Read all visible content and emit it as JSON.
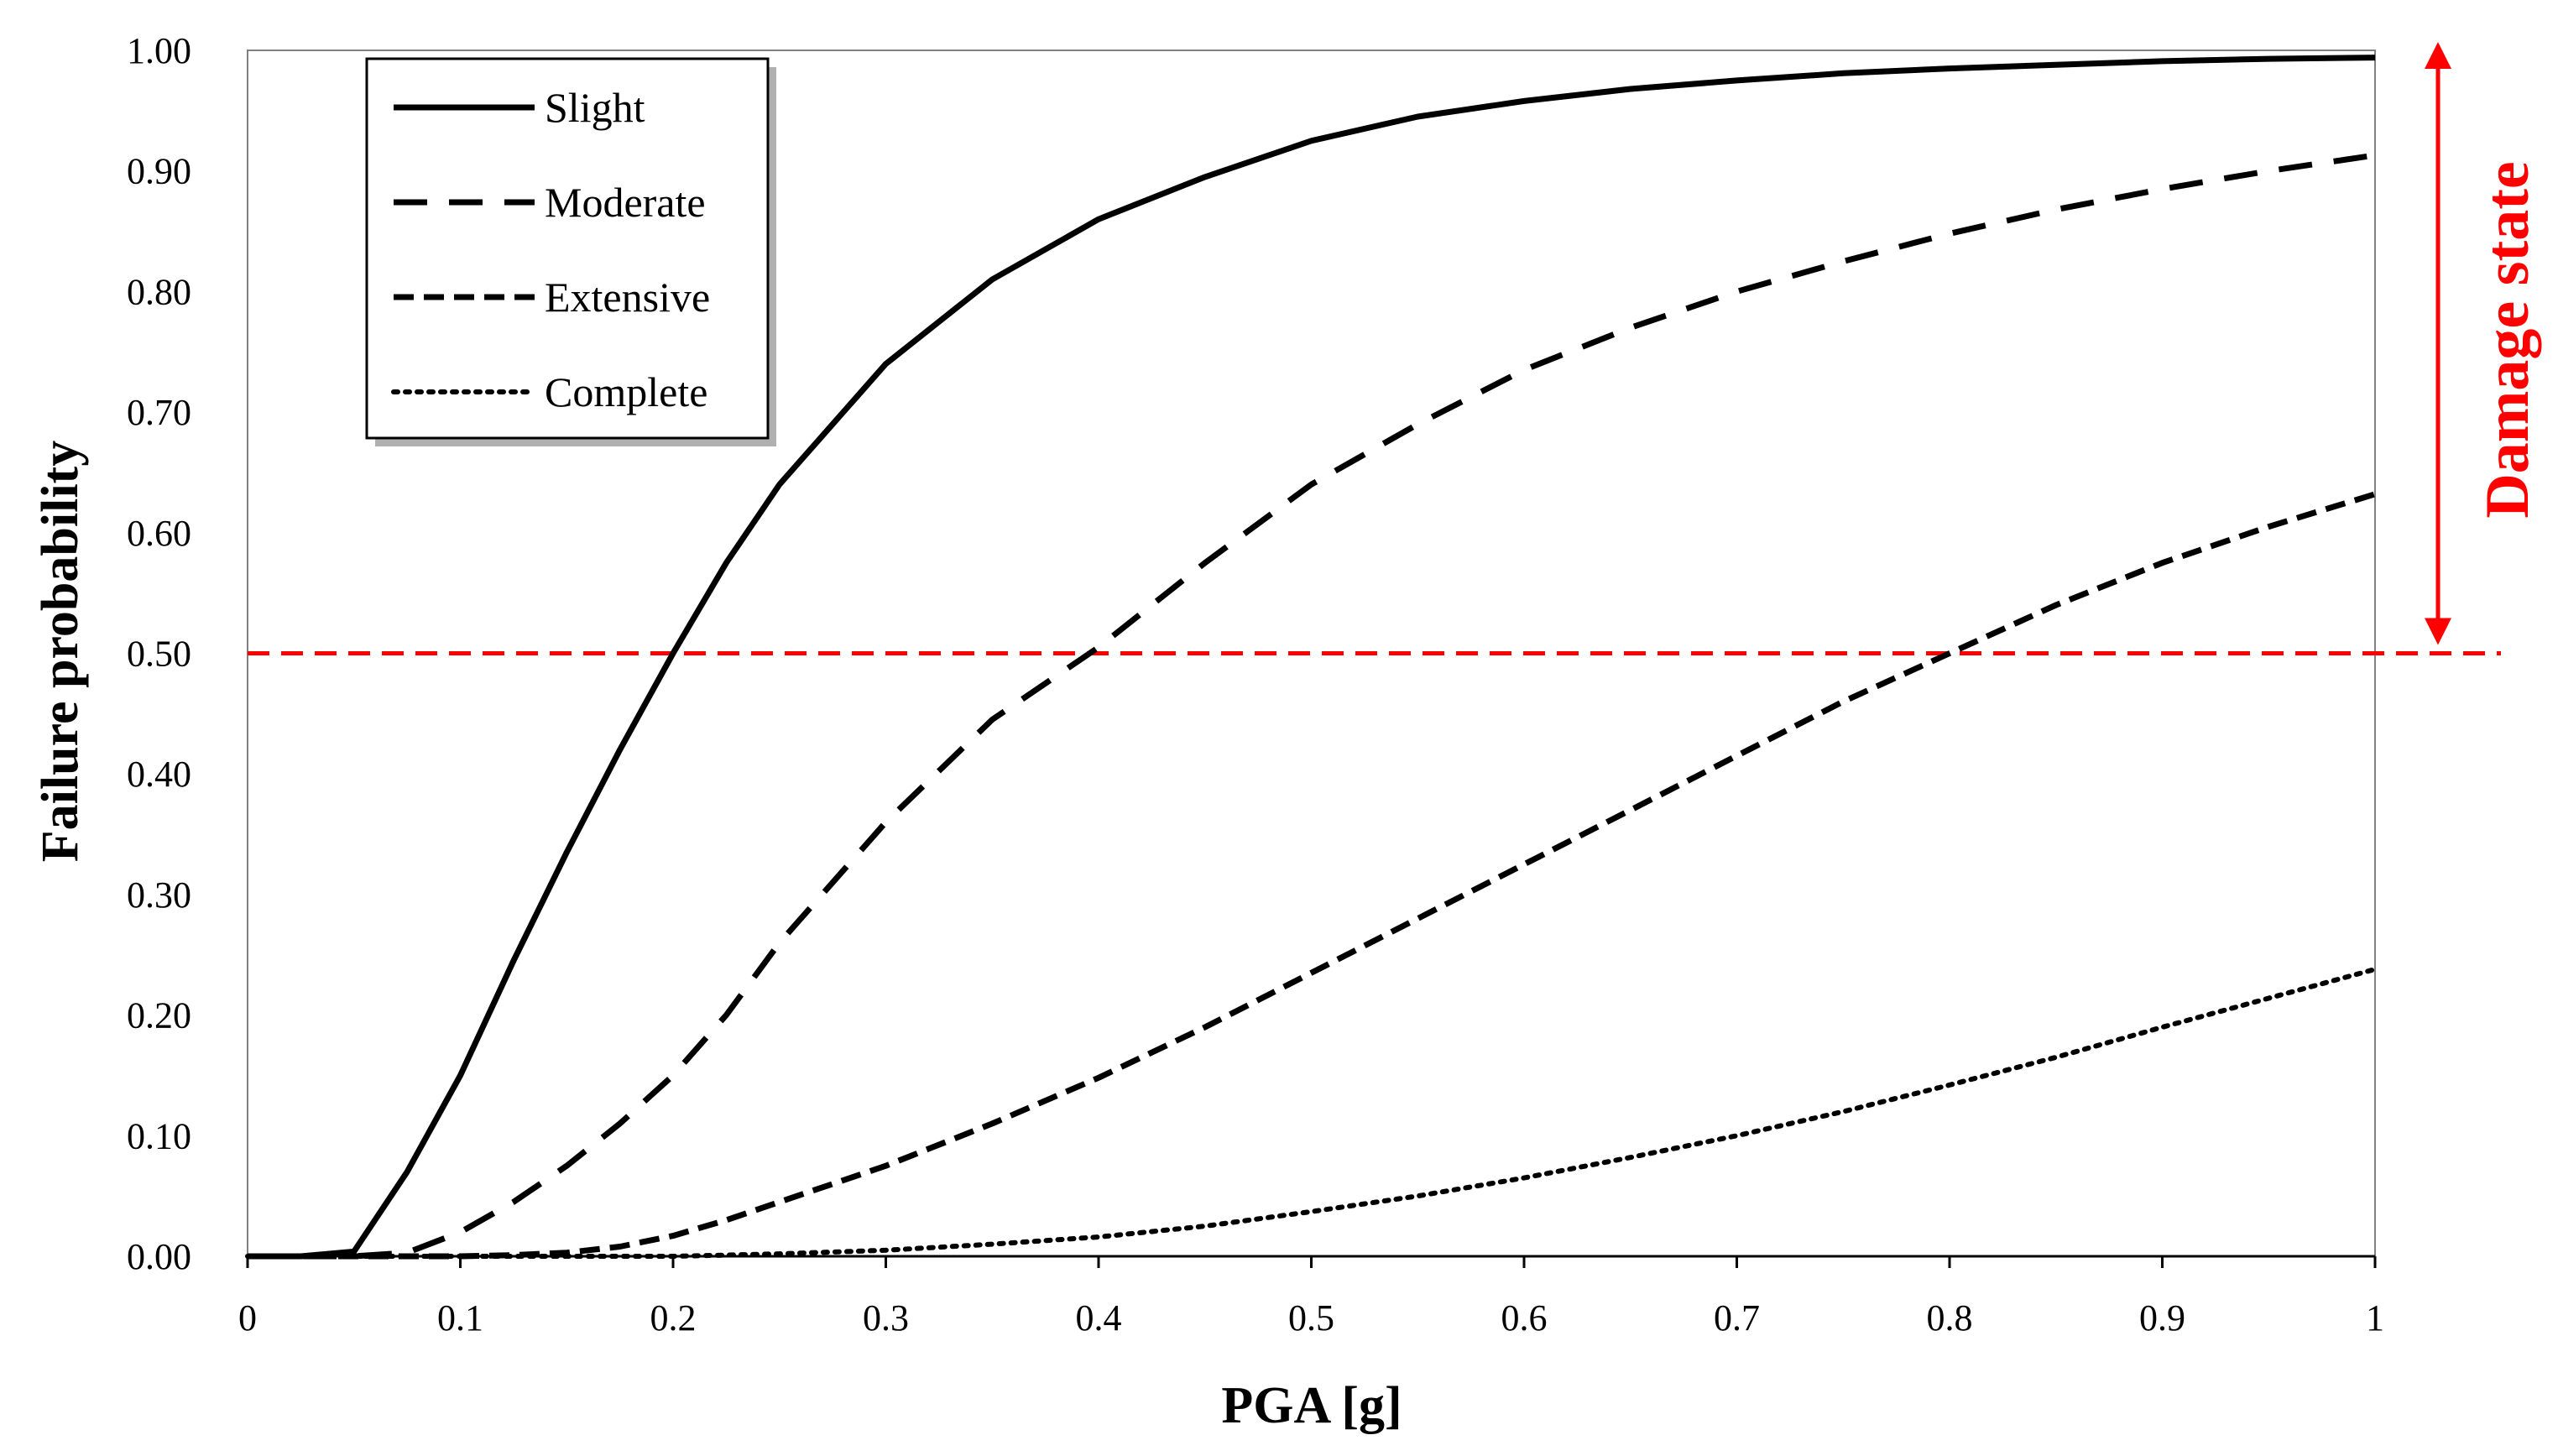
{
  "chart_data": {
    "type": "line",
    "title": "",
    "xlabel": "PGA [g]",
    "ylabel": "Failure probability",
    "xlim": [
      0,
      1
    ],
    "ylim": [
      0,
      1
    ],
    "xticks": [
      "0",
      "0.1",
      "0.2",
      "0.3",
      "0.4",
      "0.5",
      "0.6",
      "0.7",
      "0.8",
      "0.9",
      "1"
    ],
    "yticks": [
      "0.00",
      "0.10",
      "0.20",
      "0.30",
      "0.40",
      "0.50",
      "0.60",
      "0.70",
      "0.80",
      "0.90",
      "1.00"
    ],
    "grid": false,
    "legend_position": "top-left",
    "x": [
      0.0,
      0.025,
      0.05,
      0.075,
      0.1,
      0.125,
      0.15,
      0.175,
      0.2,
      0.225,
      0.25,
      0.3,
      0.35,
      0.4,
      0.45,
      0.5,
      0.55,
      0.6,
      0.65,
      0.7,
      0.75,
      0.8,
      0.85,
      0.9,
      0.95,
      1.0
    ],
    "series": [
      {
        "name": "Slight",
        "style": "solid",
        "values": [
          0.0,
          0.0,
          0.004,
          0.07,
          0.15,
          0.245,
          0.335,
          0.42,
          0.5,
          0.575,
          0.64,
          0.74,
          0.81,
          0.86,
          0.895,
          0.925,
          0.945,
          0.958,
          0.968,
          0.975,
          0.981,
          0.985,
          0.988,
          0.991,
          0.993,
          0.994
        ]
      },
      {
        "name": "Moderate",
        "style": "long-dash",
        "values": [
          0.0,
          0.0,
          0.0,
          0.003,
          0.02,
          0.045,
          0.075,
          0.11,
          0.15,
          0.2,
          0.26,
          0.36,
          0.445,
          0.505,
          0.575,
          0.64,
          0.69,
          0.735,
          0.77,
          0.8,
          0.825,
          0.848,
          0.868,
          0.885,
          0.9,
          0.913
        ]
      },
      {
        "name": "Extensive",
        "style": "dash",
        "values": [
          0.0,
          0.0,
          0.0,
          0.0,
          0.0,
          0.001,
          0.003,
          0.008,
          0.017,
          0.03,
          0.045,
          0.075,
          0.11,
          0.148,
          0.19,
          0.235,
          0.28,
          0.325,
          0.37,
          0.415,
          0.46,
          0.5,
          0.54,
          0.575,
          0.605,
          0.632
        ]
      },
      {
        "name": "Complete",
        "style": "dotted",
        "values": [
          0.0,
          0.0,
          0.0,
          0.0,
          0.0,
          0.0,
          0.0,
          0.0,
          0.0,
          0.001,
          0.002,
          0.005,
          0.01,
          0.016,
          0.025,
          0.037,
          0.05,
          0.065,
          0.082,
          0.1,
          0.12,
          0.142,
          0.165,
          0.19,
          0.214,
          0.238
        ]
      }
    ],
    "annotations": {
      "reference_line": {
        "y": 0.5,
        "color": "#ff0000",
        "style": "dashed"
      },
      "arrow": {
        "from_y": 1.0,
        "to_y": 0.5,
        "label": "Damage state",
        "color": "#ff0000"
      }
    }
  }
}
